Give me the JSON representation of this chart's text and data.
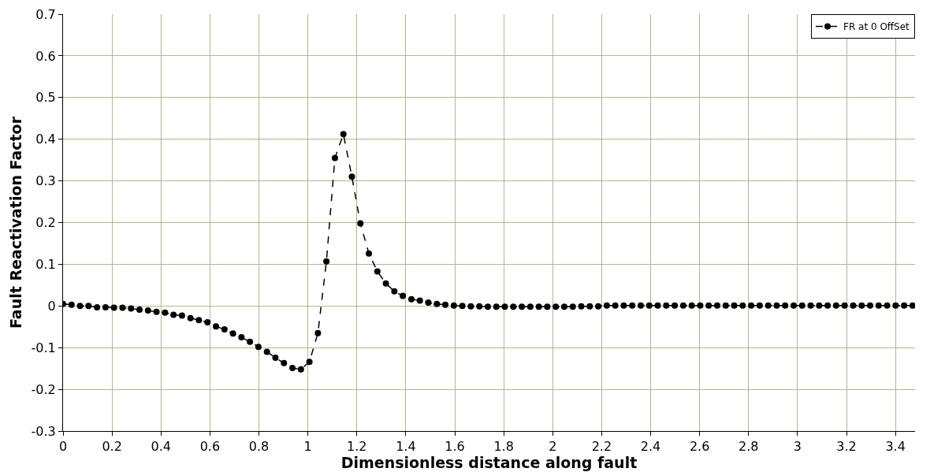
{
  "chart_data": {
    "type": "line",
    "xlabel": "Dimensionless distance along fault",
    "ylabel": "Fault Reactivation Factor",
    "x": [
      0,
      0.0347,
      0.0694,
      0.1041,
      0.1388,
      0.1735,
      0.2082,
      0.2429,
      0.2776,
      0.3123,
      0.347,
      0.3817,
      0.4164,
      0.4511,
      0.4858,
      0.5205,
      0.5552,
      0.5899,
      0.6246,
      0.6593,
      0.694,
      0.7287,
      0.7634,
      0.7981,
      0.8328,
      0.8675,
      0.9022,
      0.9369,
      0.9716,
      1.0063,
      1.041,
      1.0757,
      1.1104,
      1.1451,
      1.1798,
      1.2145,
      1.2492,
      1.2839,
      1.3186,
      1.3533,
      1.388,
      1.4227,
      1.4574,
      1.4921,
      1.5268,
      1.5615,
      1.5962,
      1.6309,
      1.6656,
      1.7003,
      1.735,
      1.7697,
      1.8044,
      1.8391,
      1.8738,
      1.9085,
      1.9432,
      1.9779,
      2.0126,
      2.0473,
      2.082,
      2.1167,
      2.1514,
      2.1861,
      2.2208,
      2.2555,
      2.2902,
      2.3249,
      2.3596,
      2.3943,
      2.429,
      2.4637,
      2.4984,
      2.5331,
      2.5678,
      2.6025,
      2.6372,
      2.6719,
      2.7066,
      2.7413,
      2.776,
      2.8107,
      2.8454,
      2.8801,
      2.9148,
      2.9495,
      2.9842,
      3.0189,
      3.0536,
      3.0883,
      3.123,
      3.1577,
      3.1924,
      3.2271,
      3.2618,
      3.2965,
      3.3312,
      3.3659,
      3.4006,
      3.4353,
      3.47
    ],
    "series": [
      {
        "name": "FR at 0 OffSet",
        "color": "#000000",
        "values": [
          0.005,
          0.003,
          0,
          0,
          -0.003,
          -0.003,
          -0.004,
          -0.004,
          -0.006,
          -0.009,
          -0.011,
          -0.014,
          -0.016,
          -0.021,
          -0.023,
          -0.029,
          -0.034,
          -0.039,
          -0.049,
          -0.056,
          -0.066,
          -0.075,
          -0.086,
          -0.098,
          -0.11,
          -0.124,
          -0.137,
          -0.149,
          -0.152,
          -0.134,
          -0.065,
          0.107,
          0.355,
          0.412,
          0.31,
          0.198,
          0.126,
          0.083,
          0.054,
          0.035,
          0.024,
          0.016,
          0.013,
          0.008,
          0.005,
          0.003,
          0.001,
          0,
          -0.001,
          -0.001,
          -0.002,
          -0.002,
          -0.002,
          -0.002,
          -0.002,
          -0.002,
          -0.002,
          -0.002,
          -0.002,
          -0.002,
          -0.002,
          -0.001,
          -0.001,
          -0.001,
          0.001,
          0.001,
          0.001,
          0.001,
          0.001,
          0.001,
          0.001,
          0.001,
          0.001,
          0.001,
          0.001,
          0.001,
          0.001,
          0.001,
          0.001,
          0.001,
          0.001,
          0.001,
          0.001,
          0.001,
          0.001,
          0.001,
          0.001,
          0.001,
          0.001,
          0.001,
          0.001,
          0.001,
          0.001,
          0.001,
          0.001,
          0.001,
          0.001,
          0.001,
          0.001,
          0.001,
          0.001
        ]
      }
    ],
    "xlim": [
      0,
      3.48
    ],
    "xticks": [
      0,
      0.2,
      0.4,
      0.6,
      0.8,
      1,
      1.2,
      1.4,
      1.6,
      1.8,
      2,
      2.2,
      2.4,
      2.6,
      2.8,
      3,
      3.2,
      3.4
    ],
    "ylim": [
      -0.3,
      0.7
    ],
    "yticks": [
      -0.3,
      -0.2,
      -0.1,
      0,
      0.1,
      0.2,
      0.3,
      0.4,
      0.5,
      0.6,
      0.7
    ],
    "grid": true,
    "legend": "top right",
    "marker": "circle",
    "line_style": "dashed"
  }
}
